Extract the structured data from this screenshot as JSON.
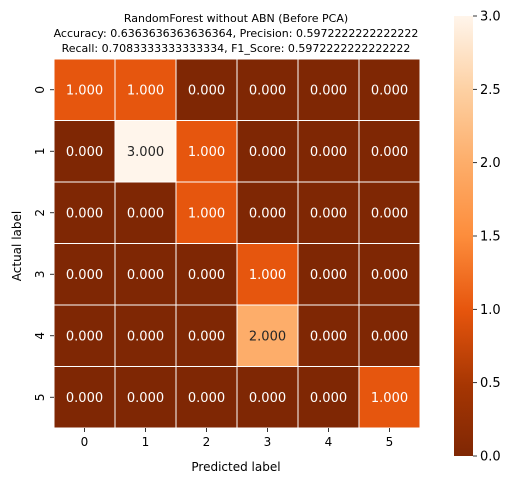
{
  "chart_data": {
    "type": "heatmap",
    "title_lines": [
      "RandomForest without ABN (Before PCA)",
      "Accuracy: 0.6363636363636364, Precision: 0.5972222222222222",
      "Recall: 0.7083333333333334, F1_Score: 0.5972222222222222"
    ],
    "xlabel": "Predicted label",
    "ylabel": "Actual label",
    "x_categories": [
      "0",
      "1",
      "2",
      "3",
      "4",
      "5"
    ],
    "y_categories": [
      "0",
      "1",
      "2",
      "3",
      "4",
      "5"
    ],
    "values": [
      [
        1,
        1,
        0,
        0,
        0,
        0
      ],
      [
        0,
        3,
        1,
        0,
        0,
        0
      ],
      [
        0,
        0,
        1,
        0,
        0,
        0
      ],
      [
        0,
        0,
        0,
        1,
        0,
        0
      ],
      [
        0,
        0,
        0,
        2,
        0,
        0
      ],
      [
        0,
        0,
        0,
        0,
        0,
        1
      ]
    ],
    "cell_labels": [
      [
        "1.000",
        "1.000",
        "0.000",
        "0.000",
        "0.000",
        "0.000"
      ],
      [
        "0.000",
        "3.000",
        "1.000",
        "0.000",
        "0.000",
        "0.000"
      ],
      [
        "0.000",
        "0.000",
        "1.000",
        "0.000",
        "0.000",
        "0.000"
      ],
      [
        "0.000",
        "0.000",
        "0.000",
        "1.000",
        "0.000",
        "0.000"
      ],
      [
        "0.000",
        "0.000",
        "0.000",
        "2.000",
        "0.000",
        "0.000"
      ],
      [
        "0.000",
        "0.000",
        "0.000",
        "0.000",
        "0.000",
        "1.000"
      ]
    ],
    "vmin": 0,
    "vmax": 3,
    "colormap": "Oranges_r",
    "colorbar_ticks": [
      "0.0",
      "0.5",
      "1.0",
      "1.5",
      "2.0",
      "2.5",
      "3.0"
    ],
    "colorbar_tick_values": [
      0,
      0.5,
      1,
      1.5,
      2,
      2.5,
      3
    ],
    "grid_line_color": "#ffffff"
  }
}
